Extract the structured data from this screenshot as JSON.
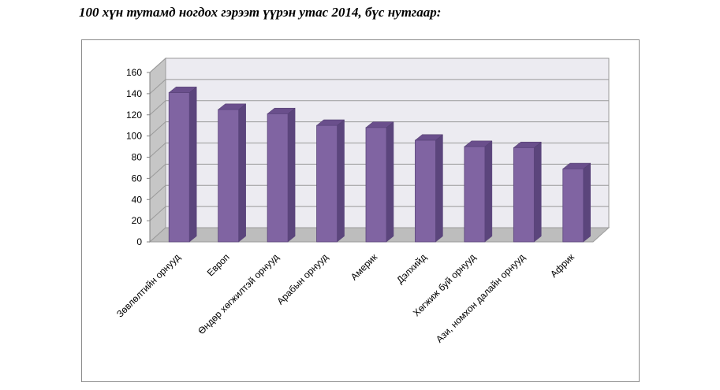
{
  "page": {
    "title": "100 хүн тутамд ногдох гэрээт үүрэн утас 2014, бүс нутгаар:"
  },
  "chart_data": {
    "type": "bar",
    "title": "",
    "xlabel": "",
    "ylabel": "",
    "ylim": [
      0,
      160
    ],
    "yticks": [
      0,
      20,
      40,
      60,
      80,
      100,
      120,
      140,
      160
    ],
    "grid": true,
    "legend": "none",
    "style": "3d-columns",
    "categories": [
      "Зөвлөлтийн орнууд",
      "Европ",
      "Өндөр хөгжилтэй орнууд",
      "Арабын орнууд",
      "Америк",
      "Дэлхийд",
      "Хөгжиж буй орнууд",
      "Ази, номхон далайн орнууд",
      "Африк"
    ],
    "series": [
      {
        "values": [
          141,
          125,
          121,
          110,
          108,
          96,
          90,
          89,
          69
        ]
      }
    ],
    "colors": {
      "bar_front": "#8064a2",
      "bar_side": "#5b457c",
      "bar_top": "#6a4f8c",
      "wall": "#ecebf1",
      "side_wall": "#c6c6c6",
      "floor": "#bdbdbd",
      "grid": "#9a9a9a"
    }
  }
}
